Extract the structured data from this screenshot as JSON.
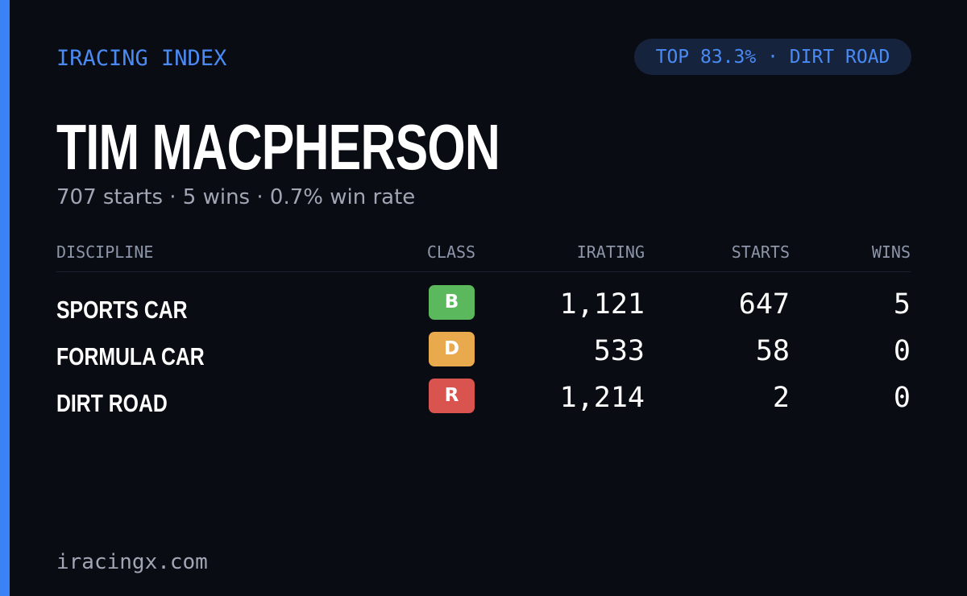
{
  "header": {
    "brand": "IRACING INDEX",
    "badge": "TOP 83.3% · DIRT ROAD"
  },
  "profile": {
    "name": "TIM MACPHERSON",
    "summary": "707 starts · 5 wins · 0.7% win rate"
  },
  "table": {
    "columns": [
      "DISCIPLINE",
      "CLASS",
      "IRATING",
      "STARTS",
      "WINS"
    ],
    "rows": [
      [
        "SPORTS CAR",
        "B",
        "1,121",
        "647",
        "5"
      ],
      [
        "FORMULA CAR",
        "D",
        "533",
        "58",
        "0"
      ],
      [
        "DIRT ROAD",
        "R",
        "1,214",
        "2",
        "0"
      ]
    ]
  },
  "footer": {
    "site": "iracingx.com"
  }
}
